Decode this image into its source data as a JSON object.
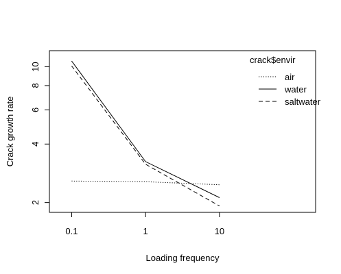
{
  "chart_data": {
    "type": "line",
    "xlabel": "Loading frequency",
    "ylabel": "Crack growth rate",
    "x_scale": "log",
    "y_scale": "log",
    "x_ticks": [
      {
        "value": 0.1,
        "label": "0.1"
      },
      {
        "value": 1,
        "label": "1"
      },
      {
        "value": 10,
        "label": "10"
      }
    ],
    "y_ticks": [
      {
        "value": 2,
        "label": "2"
      },
      {
        "value": 4,
        "label": "4"
      },
      {
        "value": 6,
        "label": "6"
      },
      {
        "value": 8,
        "label": "8"
      },
      {
        "value": 10,
        "label": "10"
      }
    ],
    "xlim": [
      0.05,
      200
    ],
    "ylim": [
      1.78,
      12.1
    ],
    "grid": false,
    "legend": {
      "title": "crack$envir",
      "placement": "top-right"
    },
    "x": [
      0.1,
      1,
      10
    ],
    "series": [
      {
        "name": "air",
        "dash": "dotted",
        "values": [
          2.58,
          2.56,
          2.47
        ]
      },
      {
        "name": "water",
        "dash": "solid",
        "values": [
          10.7,
          3.25,
          2.12
        ]
      },
      {
        "name": "saltwater",
        "dash": "dashed",
        "values": [
          10.1,
          3.15,
          1.92
        ]
      }
    ]
  }
}
